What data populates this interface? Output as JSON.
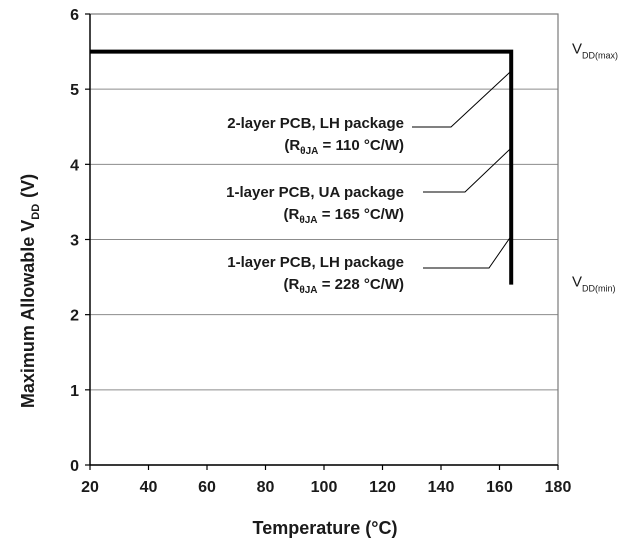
{
  "chart_data": {
    "type": "line",
    "title": "",
    "xlabel": "Temperature (°C)",
    "ylabel_main": "Maximum Allowable V",
    "ylabel_sub": "DD",
    "ylabel_unit": "(V)",
    "xlim": [
      20,
      180
    ],
    "ylim": [
      0,
      6
    ],
    "xticks": [
      20,
      40,
      60,
      80,
      100,
      120,
      140,
      160,
      180
    ],
    "yticks": [
      0,
      1,
      2,
      3,
      4,
      5,
      6
    ],
    "grid": "horizontal",
    "colors": {
      "line": "#000000",
      "grid": "#8c8c8c",
      "text": "#1a1a1a"
    },
    "series": [
      {
        "x": [
          20,
          164,
          164
        ],
        "y": [
          5.5,
          5.5,
          2.4
        ]
      }
    ],
    "annotations": [
      {
        "line1": "2-layer PCB, LH package",
        "r_main": "R",
        "r_sub": "θJA",
        "r_value": " = 110 °C/W)"
      },
      {
        "line1": "1-layer PCB, UA package",
        "r_main": "R",
        "r_sub": "θJA",
        "r_value": " = 165 °C/W)"
      },
      {
        "line1": "1-layer PCB, LH package",
        "r_main": "R",
        "r_sub": "θJA",
        "r_value": " = 228 °C/W)"
      }
    ],
    "limit_labels": [
      {
        "main": "V",
        "sub": "DD(max)",
        "y": 5.5
      },
      {
        "main": "V",
        "sub": "DD(min)",
        "y": 2.4
      }
    ]
  }
}
